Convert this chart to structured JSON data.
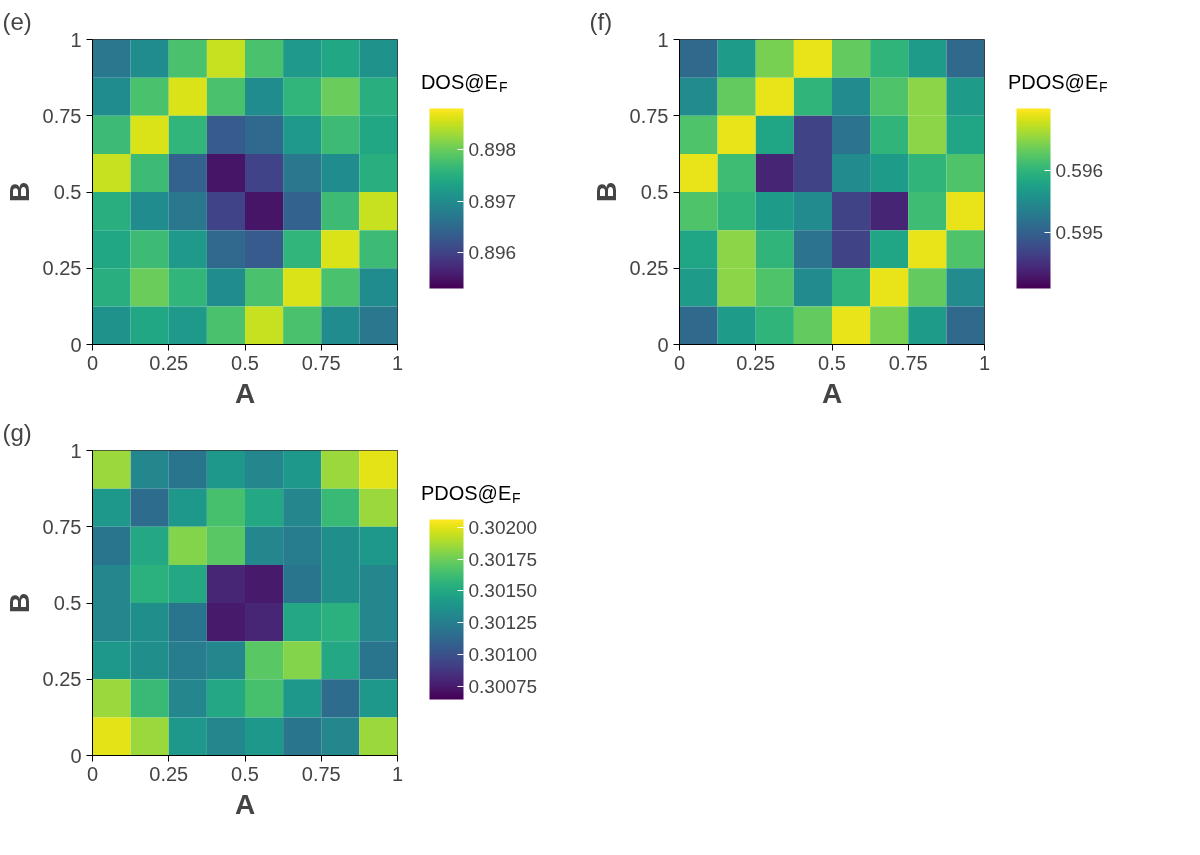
{
  "chart_data": [
    {
      "type": "heatmap",
      "title": "(e)",
      "xlabel": "A",
      "ylabel": "B",
      "clabel": "DOS@E$_{F}$",
      "x": [
        0.0625,
        0.1875,
        0.3125,
        0.4375,
        0.5625,
        0.6875,
        0.8125,
        0.9375
      ],
      "y": [
        0.9375,
        0.8125,
        0.6875,
        0.5625,
        0.4375,
        0.3125,
        0.1875,
        0.0625
      ],
      "xlim": [
        0,
        1
      ],
      "ylim": [
        0,
        1
      ],
      "xticks": [
        0,
        0.25,
        0.5,
        0.75,
        1
      ],
      "yticks": [
        0,
        0.25,
        0.5,
        0.75,
        1
      ],
      "clim": [
        0.8953,
        0.8988
      ],
      "cticks": [
        0.896,
        0.897,
        0.898
      ],
      "grid": false,
      "cells": [
        [
          0.8967,
          0.897,
          0.8978,
          0.8985,
          0.8978,
          0.8972,
          0.8974,
          0.8971
        ],
        [
          0.897,
          0.8978,
          0.8986,
          0.8978,
          0.897,
          0.8976,
          0.898,
          0.8975
        ],
        [
          0.8977,
          0.8986,
          0.8976,
          0.8963,
          0.8965,
          0.8972,
          0.8977,
          0.8974
        ],
        [
          0.8985,
          0.8977,
          0.8964,
          0.8955,
          0.896,
          0.8967,
          0.897,
          0.8975
        ],
        [
          0.8975,
          0.897,
          0.8967,
          0.896,
          0.8955,
          0.8964,
          0.8977,
          0.8985
        ],
        [
          0.8974,
          0.8977,
          0.8972,
          0.8965,
          0.8963,
          0.8976,
          0.8986,
          0.8977
        ],
        [
          0.8975,
          0.898,
          0.8976,
          0.897,
          0.8978,
          0.8986,
          0.8978,
          0.897
        ],
        [
          0.8971,
          0.8974,
          0.8972,
          0.8978,
          0.8985,
          0.8978,
          0.897,
          0.8967
        ]
      ]
    },
    {
      "type": "heatmap",
      "title": "(f)",
      "xlabel": "A",
      "ylabel": "B",
      "clabel": "PDOS@E$_{F}$",
      "x": [
        0.0625,
        0.1875,
        0.3125,
        0.4375,
        0.5625,
        0.6875,
        0.8125,
        0.9375
      ],
      "y": [
        0.9375,
        0.8125,
        0.6875,
        0.5625,
        0.4375,
        0.3125,
        0.1875,
        0.0625
      ],
      "xlim": [
        0,
        1
      ],
      "ylim": [
        0,
        1
      ],
      "xticks": [
        0,
        0.25,
        0.5,
        0.75,
        1
      ],
      "yticks": [
        0,
        0.25,
        0.5,
        0.75,
        1
      ],
      "clim": [
        0.5941,
        0.597
      ],
      "cticks": [
        0.595,
        0.596
      ],
      "grid": false,
      "cells": [
        [
          0.5951,
          0.5957,
          0.5964,
          0.5969,
          0.5963,
          0.596,
          0.5957,
          0.5951
        ],
        [
          0.5955,
          0.5963,
          0.5969,
          0.596,
          0.5955,
          0.5962,
          0.5965,
          0.5957
        ],
        [
          0.5962,
          0.5969,
          0.5958,
          0.5947,
          0.5952,
          0.596,
          0.5965,
          0.5958
        ],
        [
          0.5969,
          0.5961,
          0.5944,
          0.5947,
          0.5955,
          0.5957,
          0.596,
          0.5962
        ],
        [
          0.5962,
          0.596,
          0.5957,
          0.5955,
          0.5947,
          0.5944,
          0.5961,
          0.5969
        ],
        [
          0.5958,
          0.5965,
          0.596,
          0.5952,
          0.5947,
          0.5958,
          0.5969,
          0.5962
        ],
        [
          0.5957,
          0.5965,
          0.5962,
          0.5955,
          0.596,
          0.5969,
          0.5963,
          0.5955
        ],
        [
          0.5951,
          0.5957,
          0.596,
          0.5963,
          0.5969,
          0.5964,
          0.5957,
          0.5951
        ]
      ]
    },
    {
      "type": "heatmap",
      "title": "(g)",
      "xlabel": "A",
      "ylabel": "B",
      "clabel": "PDOS@E$_{F}$",
      "x": [
        0.0625,
        0.1875,
        0.3125,
        0.4375,
        0.5625,
        0.6875,
        0.8125,
        0.9375
      ],
      "y": [
        0.9375,
        0.8125,
        0.6875,
        0.5625,
        0.4375,
        0.3125,
        0.1875,
        0.0625
      ],
      "xlim": [
        0,
        1
      ],
      "ylim": [
        0,
        1
      ],
      "xticks": [
        0,
        0.25,
        0.5,
        0.75,
        1
      ],
      "yticks": [
        0,
        0.25,
        0.5,
        0.75,
        1
      ],
      "clim": [
        0.30065,
        0.30206
      ],
      "cticks": [
        {
          "value": 0.302,
          "label": "0.30200"
        },
        {
          "value": 0.30175,
          "label": "0.30175"
        },
        {
          "value": 0.3015,
          "label": "0.30150"
        },
        {
          "value": 0.30125,
          "label": "0.30125"
        },
        {
          "value": 0.301,
          "label": "0.30100"
        },
        {
          "value": 0.30075,
          "label": "0.30075"
        }
      ],
      "grid": false,
      "cells": [
        [
          0.30185,
          0.3013,
          0.3012,
          0.3014,
          0.3013,
          0.3014,
          0.30185,
          0.302
        ],
        [
          0.3014,
          0.30115,
          0.3014,
          0.30165,
          0.3015,
          0.3013,
          0.3016,
          0.30185
        ],
        [
          0.3012,
          0.3015,
          0.3018,
          0.3017,
          0.3013,
          0.30125,
          0.30135,
          0.3014
        ],
        [
          0.3013,
          0.30155,
          0.3015,
          0.3008,
          0.30075,
          0.3012,
          0.30135,
          0.3013
        ],
        [
          0.3013,
          0.30135,
          0.3012,
          0.30075,
          0.3008,
          0.3015,
          0.30155,
          0.3013
        ],
        [
          0.3014,
          0.30135,
          0.30125,
          0.3013,
          0.3017,
          0.3018,
          0.3015,
          0.3012
        ],
        [
          0.30185,
          0.3016,
          0.3013,
          0.3015,
          0.30165,
          0.3014,
          0.30115,
          0.3014
        ],
        [
          0.302,
          0.30185,
          0.3014,
          0.3013,
          0.3014,
          0.3012,
          0.3013,
          0.30185
        ]
      ]
    }
  ]
}
